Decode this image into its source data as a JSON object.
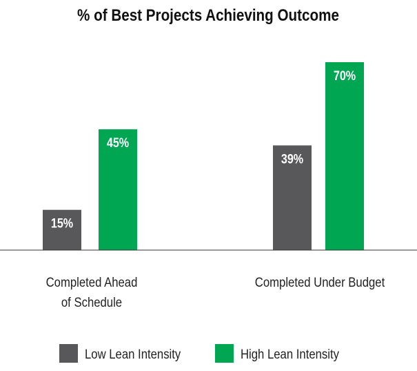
{
  "chart_data": {
    "type": "bar",
    "title": "% of Best Projects Achieving Outcome",
    "categories": [
      [
        "Completed Ahead",
        "of Schedule"
      ],
      [
        "Completed Under Budget"
      ]
    ],
    "series": [
      {
        "name": "Low Lean Intensity",
        "values": [
          15,
          39
        ],
        "labels": [
          "15%",
          "39%"
        ],
        "color": "#58585a"
      },
      {
        "name": "High Lean Intensity",
        "values": [
          45,
          70
        ],
        "labels": [
          "45%",
          "70%"
        ],
        "color": "#00a651"
      }
    ],
    "ylim": [
      0,
      70
    ],
    "grid": false,
    "legend": "bottom",
    "xlabel": "",
    "ylabel": ""
  }
}
